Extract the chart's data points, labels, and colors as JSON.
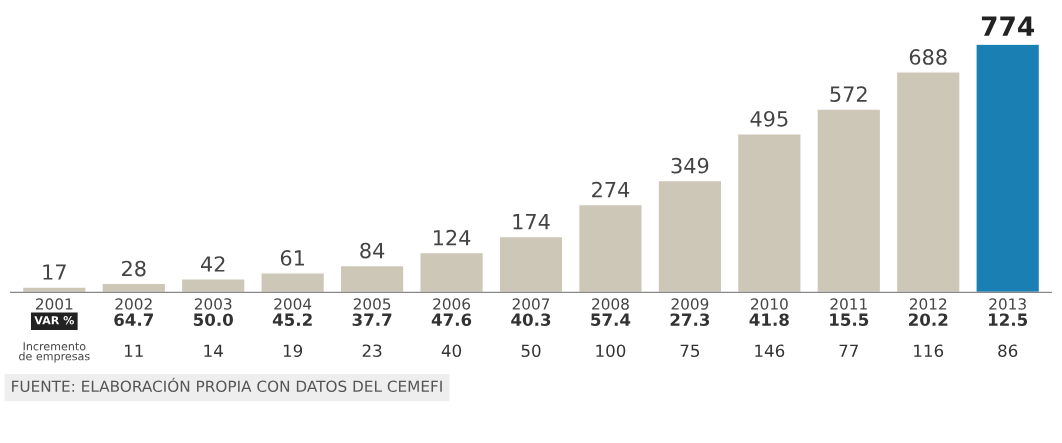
{
  "chart_data": {
    "type": "bar",
    "categories": [
      "2001",
      "2002",
      "2003",
      "2004",
      "2005",
      "2006",
      "2007",
      "2008",
      "2009",
      "2010",
      "2011",
      "2012",
      "2013"
    ],
    "values": [
      17,
      28,
      42,
      61,
      84,
      124,
      174,
      274,
      349,
      495,
      572,
      688,
      774
    ],
    "colors": [
      "#cdc7b7",
      "#cdc7b7",
      "#cdc7b7",
      "#cdc7b7",
      "#cdc7b7",
      "#cdc7b7",
      "#cdc7b7",
      "#cdc7b7",
      "#cdc7b7",
      "#cdc7b7",
      "#cdc7b7",
      "#cdc7b7",
      "#1a80b3"
    ],
    "data_labels": true,
    "annotations": [
      "VAR %",
      "64.7",
      "50.0",
      "45.2",
      "37.7",
      "47.6",
      "40.3",
      "57.4",
      "27.3",
      "41.8",
      "15.5",
      "20.2",
      "12.5",
      "Incremento\nde empresas",
      "11",
      "14",
      "19",
      "23",
      "40",
      "50",
      "100",
      "75",
      "146",
      "77",
      "116",
      "86",
      "FUENTE: ELABORACIÓN PROPIA CON DATOS DEL CEMEFI"
    ]
  }
}
